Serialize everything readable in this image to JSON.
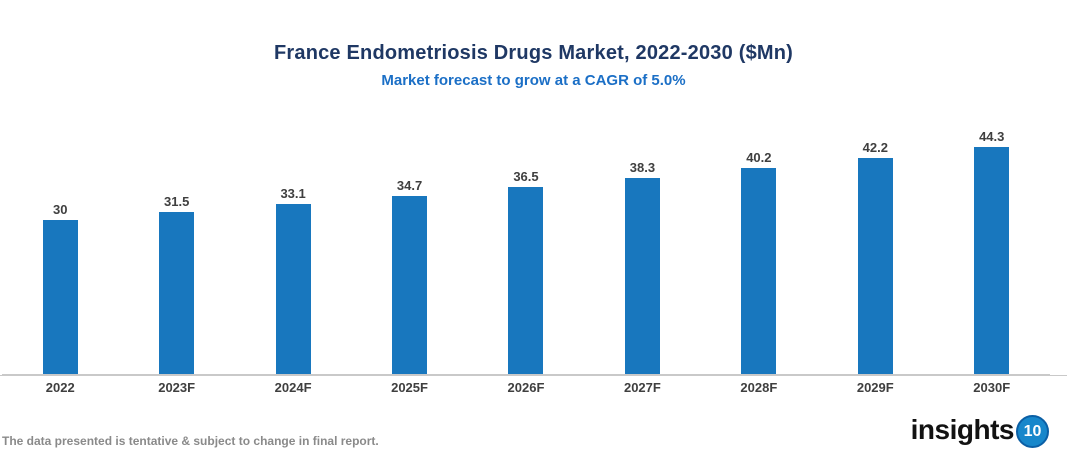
{
  "header": {
    "title": "France Endometriosis Drugs Market, 2022-2030 ($Mn)",
    "subtitle": "Market forecast to grow at a CAGR of 5.0%"
  },
  "chart_data": {
    "type": "bar",
    "title": "France Endometriosis Drugs Market, 2022-2030 ($Mn)",
    "subtitle": "Market forecast to grow at a CAGR of 5.0%",
    "categories": [
      "2022",
      "2023F",
      "2024F",
      "2025F",
      "2026F",
      "2027F",
      "2028F",
      "2029F",
      "2030F"
    ],
    "values": [
      30,
      31.5,
      33.1,
      34.7,
      36.5,
      38.3,
      40.2,
      42.2,
      44.3
    ],
    "value_labels": [
      "30",
      "31.5",
      "33.1",
      "34.7",
      "36.5",
      "38.3",
      "40.2",
      "42.2",
      "44.3"
    ],
    "xlabel": "",
    "ylabel": "",
    "ylim": [
      0,
      47
    ],
    "y_axis_visible": false,
    "gridlines": false,
    "legend": false,
    "bar_color": "#1877be",
    "label_color": "#3f3f3f"
  },
  "footer": {
    "note": "The data presented is tentative & subject to change in final report."
  },
  "logo": {
    "text": "insights",
    "badge": "10",
    "badge_color": "#1787cb"
  }
}
